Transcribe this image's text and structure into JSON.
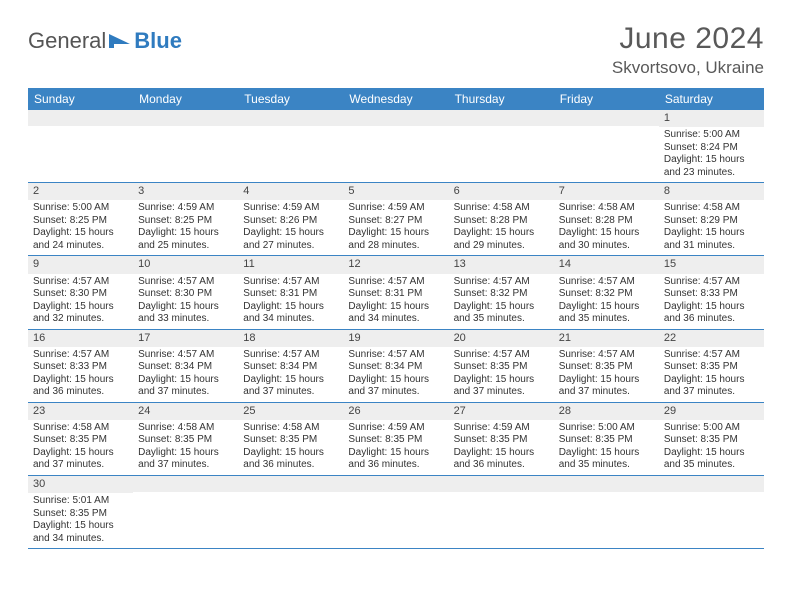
{
  "brand": {
    "part1": "General",
    "part2": "Blue"
  },
  "title": "June 2024",
  "location": "Skvortsovo, Ukraine",
  "colors": {
    "header_bg": "#3b84c4",
    "header_text": "#ffffff",
    "daynum_bg": "#eeeeee",
    "cell_border": "#3b84c4",
    "title_color": "#595959",
    "body_text": "#333333"
  },
  "weekdays": [
    "Sunday",
    "Monday",
    "Tuesday",
    "Wednesday",
    "Thursday",
    "Friday",
    "Saturday"
  ],
  "first_weekday_index": 6,
  "days": [
    {
      "n": 1,
      "sunrise": "5:00 AM",
      "sunset": "8:24 PM",
      "dl_h": 15,
      "dl_m": 23
    },
    {
      "n": 2,
      "sunrise": "5:00 AM",
      "sunset": "8:25 PM",
      "dl_h": 15,
      "dl_m": 24
    },
    {
      "n": 3,
      "sunrise": "4:59 AM",
      "sunset": "8:25 PM",
      "dl_h": 15,
      "dl_m": 25
    },
    {
      "n": 4,
      "sunrise": "4:59 AM",
      "sunset": "8:26 PM",
      "dl_h": 15,
      "dl_m": 27
    },
    {
      "n": 5,
      "sunrise": "4:59 AM",
      "sunset": "8:27 PM",
      "dl_h": 15,
      "dl_m": 28
    },
    {
      "n": 6,
      "sunrise": "4:58 AM",
      "sunset": "8:28 PM",
      "dl_h": 15,
      "dl_m": 29
    },
    {
      "n": 7,
      "sunrise": "4:58 AM",
      "sunset": "8:28 PM",
      "dl_h": 15,
      "dl_m": 30
    },
    {
      "n": 8,
      "sunrise": "4:58 AM",
      "sunset": "8:29 PM",
      "dl_h": 15,
      "dl_m": 31
    },
    {
      "n": 9,
      "sunrise": "4:57 AM",
      "sunset": "8:30 PM",
      "dl_h": 15,
      "dl_m": 32
    },
    {
      "n": 10,
      "sunrise": "4:57 AM",
      "sunset": "8:30 PM",
      "dl_h": 15,
      "dl_m": 33
    },
    {
      "n": 11,
      "sunrise": "4:57 AM",
      "sunset": "8:31 PM",
      "dl_h": 15,
      "dl_m": 34
    },
    {
      "n": 12,
      "sunrise": "4:57 AM",
      "sunset": "8:31 PM",
      "dl_h": 15,
      "dl_m": 34
    },
    {
      "n": 13,
      "sunrise": "4:57 AM",
      "sunset": "8:32 PM",
      "dl_h": 15,
      "dl_m": 35
    },
    {
      "n": 14,
      "sunrise": "4:57 AM",
      "sunset": "8:32 PM",
      "dl_h": 15,
      "dl_m": 35
    },
    {
      "n": 15,
      "sunrise": "4:57 AM",
      "sunset": "8:33 PM",
      "dl_h": 15,
      "dl_m": 36
    },
    {
      "n": 16,
      "sunrise": "4:57 AM",
      "sunset": "8:33 PM",
      "dl_h": 15,
      "dl_m": 36
    },
    {
      "n": 17,
      "sunrise": "4:57 AM",
      "sunset": "8:34 PM",
      "dl_h": 15,
      "dl_m": 37
    },
    {
      "n": 18,
      "sunrise": "4:57 AM",
      "sunset": "8:34 PM",
      "dl_h": 15,
      "dl_m": 37
    },
    {
      "n": 19,
      "sunrise": "4:57 AM",
      "sunset": "8:34 PM",
      "dl_h": 15,
      "dl_m": 37
    },
    {
      "n": 20,
      "sunrise": "4:57 AM",
      "sunset": "8:35 PM",
      "dl_h": 15,
      "dl_m": 37
    },
    {
      "n": 21,
      "sunrise": "4:57 AM",
      "sunset": "8:35 PM",
      "dl_h": 15,
      "dl_m": 37
    },
    {
      "n": 22,
      "sunrise": "4:57 AM",
      "sunset": "8:35 PM",
      "dl_h": 15,
      "dl_m": 37
    },
    {
      "n": 23,
      "sunrise": "4:58 AM",
      "sunset": "8:35 PM",
      "dl_h": 15,
      "dl_m": 37
    },
    {
      "n": 24,
      "sunrise": "4:58 AM",
      "sunset": "8:35 PM",
      "dl_h": 15,
      "dl_m": 37
    },
    {
      "n": 25,
      "sunrise": "4:58 AM",
      "sunset": "8:35 PM",
      "dl_h": 15,
      "dl_m": 36
    },
    {
      "n": 26,
      "sunrise": "4:59 AM",
      "sunset": "8:35 PM",
      "dl_h": 15,
      "dl_m": 36
    },
    {
      "n": 27,
      "sunrise": "4:59 AM",
      "sunset": "8:35 PM",
      "dl_h": 15,
      "dl_m": 36
    },
    {
      "n": 28,
      "sunrise": "5:00 AM",
      "sunset": "8:35 PM",
      "dl_h": 15,
      "dl_m": 35
    },
    {
      "n": 29,
      "sunrise": "5:00 AM",
      "sunset": "8:35 PM",
      "dl_h": 15,
      "dl_m": 35
    },
    {
      "n": 30,
      "sunrise": "5:01 AM",
      "sunset": "8:35 PM",
      "dl_h": 15,
      "dl_m": 34
    }
  ],
  "labels": {
    "sunrise": "Sunrise:",
    "sunset": "Sunset:",
    "daylight_prefix": "Daylight:",
    "hours_word": "hours",
    "and_word": "and",
    "minutes_word": "minutes."
  }
}
